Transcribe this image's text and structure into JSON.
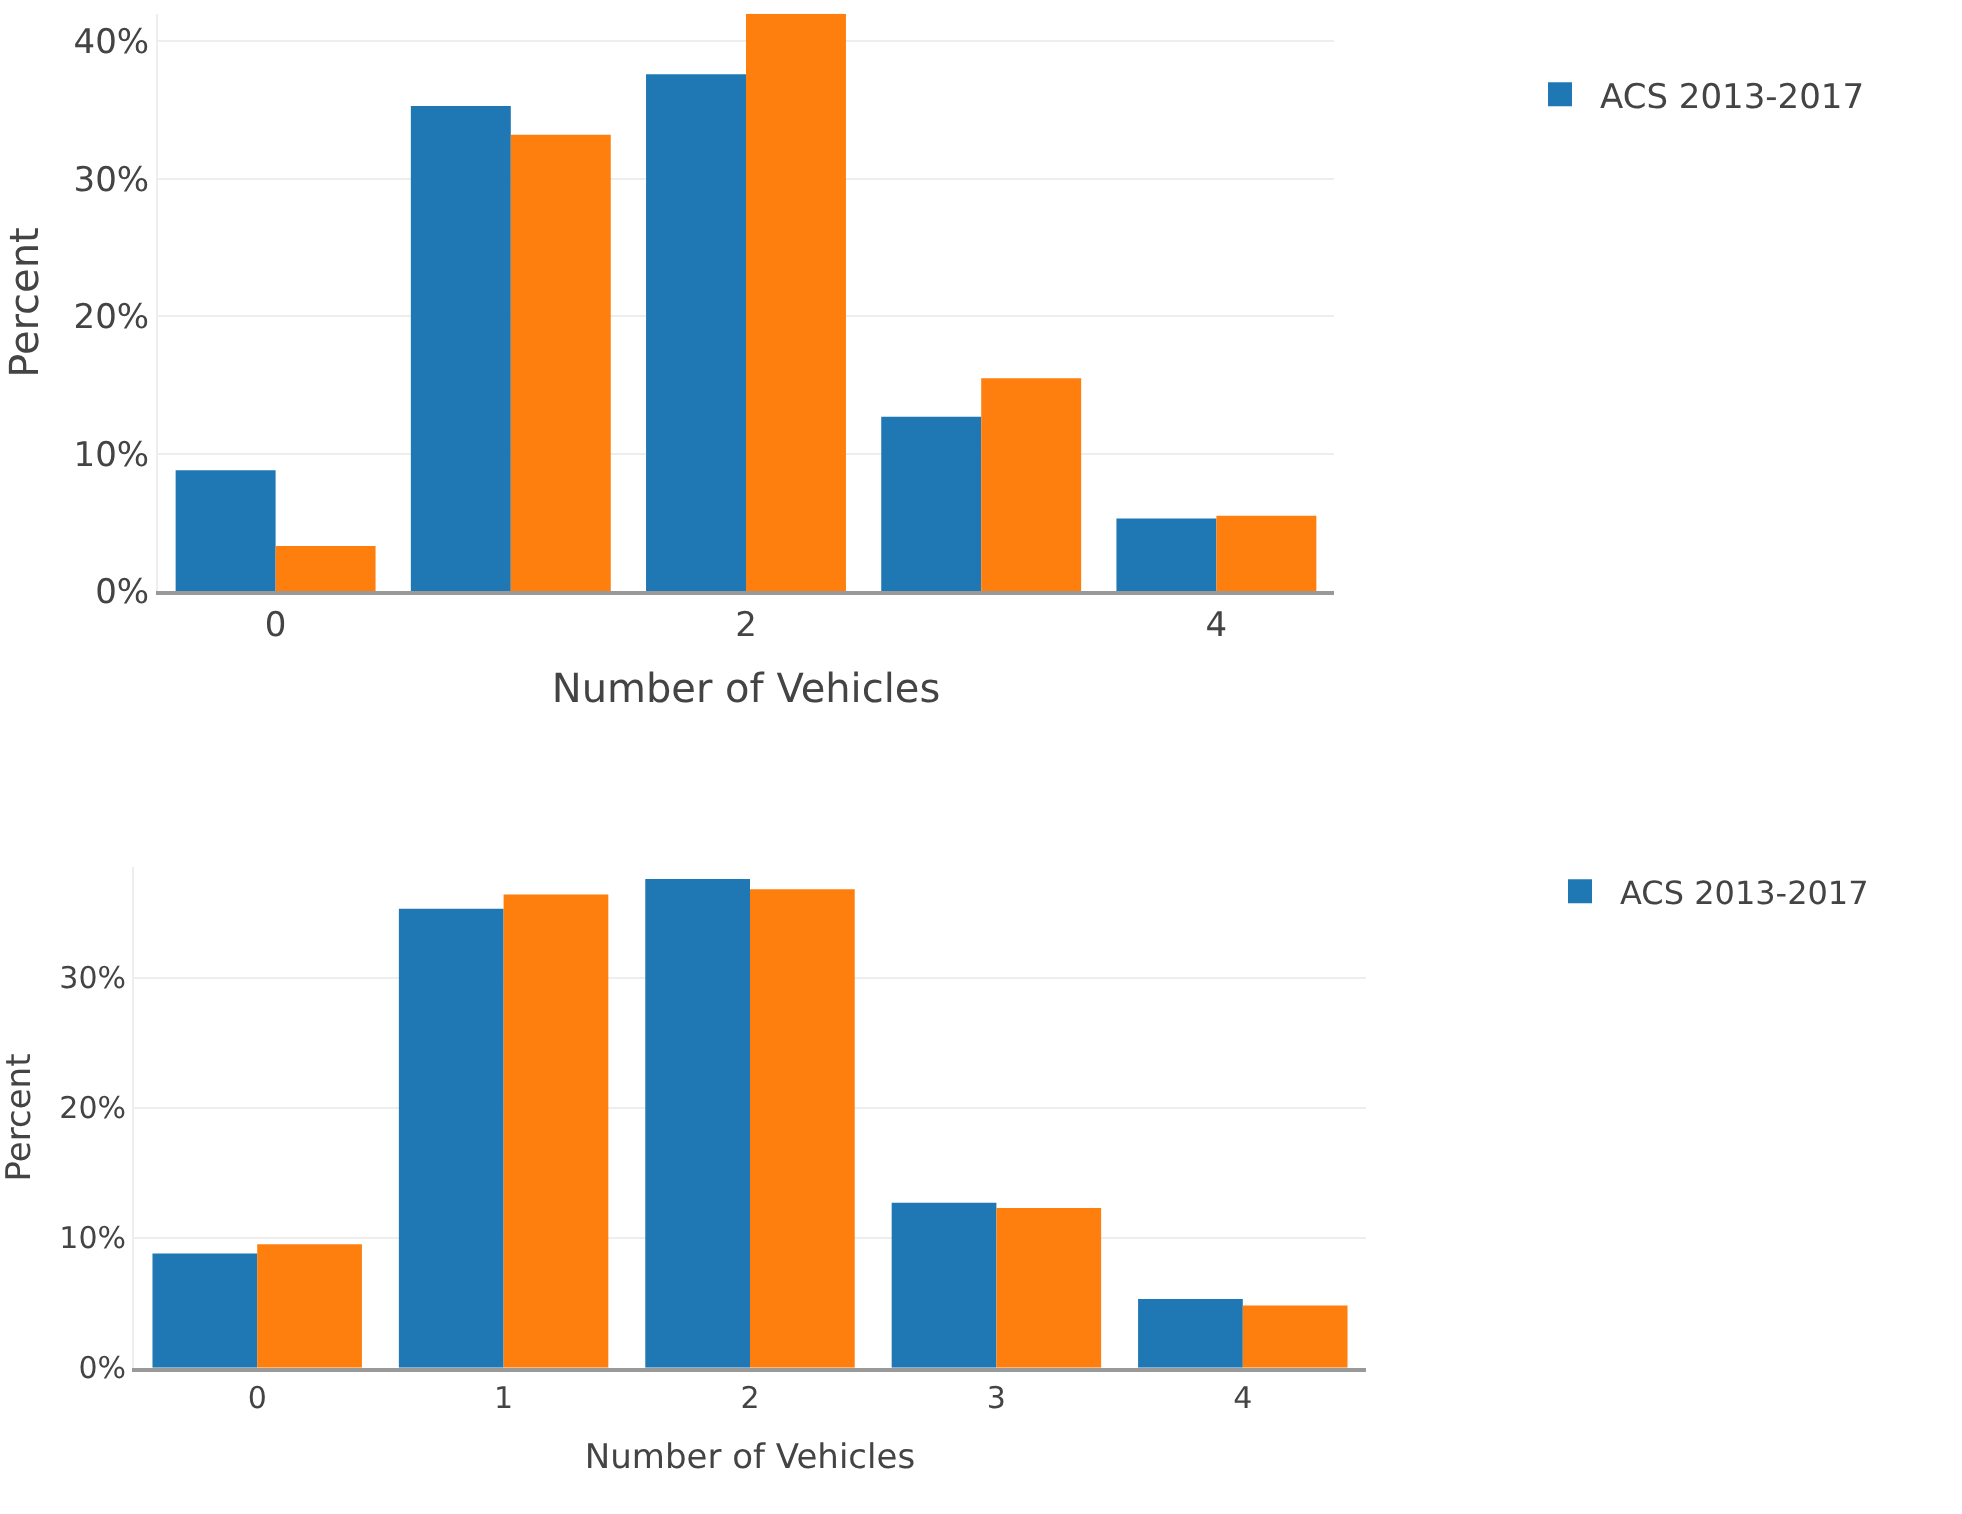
{
  "chart_data": [
    {
      "type": "bar",
      "xlabel": "Number of Vehicles",
      "ylabel": "Percent",
      "x": [
        0,
        1,
        2,
        3,
        4
      ],
      "series": [
        {
          "name": "ACS 2013-2017",
          "color": "#1f77b4",
          "values": [
            8.8,
            35.3,
            37.6,
            12.7,
            5.3
          ]
        },
        {
          "color": "#ff7f0e",
          "values": [
            3.3,
            33.2,
            42.0,
            15.5,
            5.5
          ]
        }
      ],
      "xlim": [
        -0.5,
        4.5
      ],
      "xticks": [
        0,
        2,
        4
      ],
      "ylim": [
        0,
        42
      ],
      "yticks": [
        {
          "value": 0,
          "label": "0%"
        },
        {
          "value": 10,
          "label": "10%"
        },
        {
          "value": 20,
          "label": "20%"
        },
        {
          "value": 30,
          "label": "30%"
        },
        {
          "value": 40,
          "label": "40%"
        }
      ],
      "grid": "y",
      "legend": "top right"
    },
    {
      "type": "bar",
      "xlabel": "Number of Vehicles",
      "ylabel": "Percent",
      "categories": [
        "0",
        "1",
        "2",
        "3",
        "4"
      ],
      "series": [
        {
          "name": "ACS 2013-2017",
          "color": "#1f77b4",
          "values": [
            8.8,
            35.3,
            37.6,
            12.7,
            5.3
          ]
        },
        {
          "color": "#ff7f0e",
          "values": [
            9.5,
            36.4,
            36.8,
            12.3,
            4.8
          ]
        }
      ],
      "ylim": [
        0,
        38.5
      ],
      "yticks": [
        {
          "value": 0,
          "label": "0%"
        },
        {
          "value": 10,
          "label": "10%"
        },
        {
          "value": 20,
          "label": "20%"
        },
        {
          "value": 30,
          "label": "30%"
        }
      ],
      "grid": "y",
      "legend": "top right"
    }
  ]
}
